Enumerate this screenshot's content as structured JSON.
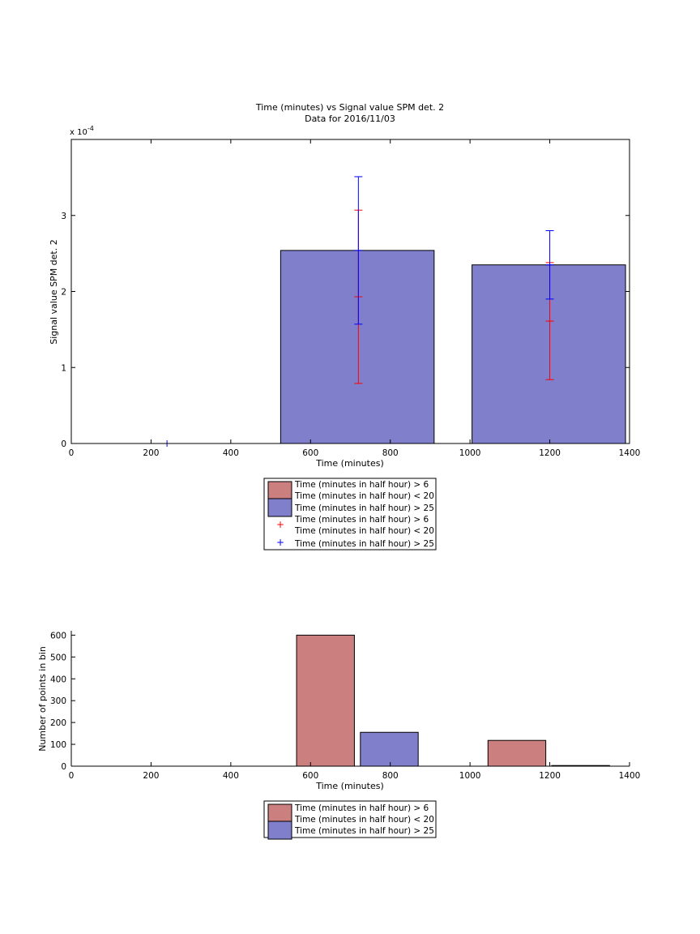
{
  "chart_data": [
    {
      "type": "bar",
      "title": "Time (minutes) vs Signal value SPM det. 2",
      "subtitle": "Data for 2016/11/03",
      "xlabel": "Time (minutes)",
      "ylabel": "Signal value SPM det. 2",
      "y_exponent_label": "x 10",
      "y_exponent_power": "-4",
      "xlim": [
        0,
        1400
      ],
      "ylim": [
        0,
        4
      ],
      "x_ticks": [
        "0",
        "200",
        "400",
        "600",
        "800",
        "1000",
        "1200",
        "1400"
      ],
      "y_ticks": [
        "0",
        "1",
        "2",
        "3"
      ],
      "grid": false,
      "legend_position": "below",
      "colors": {
        "red_bar": "#cc7f7f",
        "blue_bar": "#7f7fcc",
        "red_err": "#ff0000",
        "blue_err": "#0000ff"
      },
      "bars": [
        {
          "series": "blue",
          "x_start": 525,
          "x_end": 910,
          "value": 2.54
        },
        {
          "series": "blue",
          "x_start": 1005,
          "x_end": 1390,
          "value": 2.35
        }
      ],
      "errorbars": [
        {
          "series": "red",
          "x": 720,
          "value": 1.93,
          "lower": 0.79,
          "upper": 3.07
        },
        {
          "series": "blue",
          "x": 720,
          "value": 2.54,
          "lower": 1.57,
          "upper": 3.51
        },
        {
          "series": "red",
          "x": 1200,
          "value": 1.61,
          "lower": 0.84,
          "upper": 2.38
        },
        {
          "series": "blue",
          "x": 1200,
          "value": 2.35,
          "lower": 1.9,
          "upper": 2.8
        },
        {
          "series": "blue",
          "x": 240,
          "value": 0.0,
          "lower": 0.0,
          "upper": 0.0
        }
      ],
      "legend": [
        {
          "kind": "patch",
          "color": "#cc7f7f",
          "lines": [
            "Time (minutes in half hour) > 6",
            "Time (minutes in half hour) < 20"
          ]
        },
        {
          "kind": "patch",
          "color": "#7f7fcc",
          "lines": [
            "Time (minutes in half hour) > 25"
          ]
        },
        {
          "kind": "marker",
          "color": "#ff0000",
          "lines": [
            "Time (minutes in half hour) > 6",
            "Time (minutes in half hour) < 20"
          ]
        },
        {
          "kind": "marker",
          "color": "#0000ff",
          "lines": [
            "Time (minutes in half hour) > 25"
          ]
        }
      ]
    },
    {
      "type": "bar",
      "xlabel": "Time (minutes)",
      "ylabel": "Number of points in bin",
      "xlim": [
        0,
        1400
      ],
      "ylim": [
        0,
        620
      ],
      "x_ticks": [
        "0",
        "200",
        "400",
        "600",
        "800",
        "1000",
        "1200",
        "1400"
      ],
      "y_ticks": [
        "0",
        "100",
        "200",
        "300",
        "400",
        "500",
        "600"
      ],
      "grid": false,
      "legend_position": "below",
      "bars": [
        {
          "series": "red",
          "x_start": 565,
          "x_end": 710,
          "value": 600
        },
        {
          "series": "blue",
          "x_start": 725,
          "x_end": 870,
          "value": 155
        },
        {
          "series": "red",
          "x_start": 1045,
          "x_end": 1190,
          "value": 118
        },
        {
          "series": "blue",
          "x_start": 1205,
          "x_end": 1350,
          "value": 3
        }
      ],
      "legend": [
        {
          "kind": "patch",
          "color": "#cc7f7f",
          "lines": [
            "Time (minutes in half hour) > 6",
            "Time (minutes in half hour) < 20"
          ]
        },
        {
          "kind": "patch",
          "color": "#7f7fcc",
          "lines": [
            "Time (minutes in half hour) > 25"
          ]
        }
      ]
    }
  ]
}
